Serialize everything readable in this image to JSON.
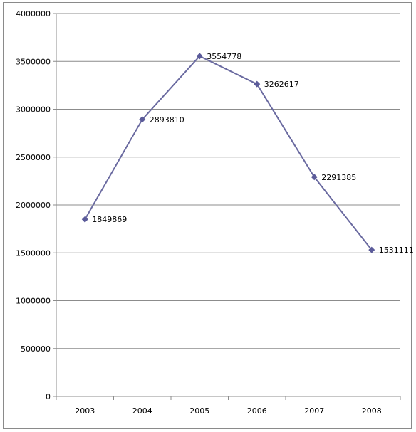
{
  "chart_data": {
    "type": "line",
    "categories": [
      "2003",
      "2004",
      "2005",
      "2006",
      "2007",
      "2008"
    ],
    "series": [
      {
        "values": [
          1849869,
          2893810,
          3554778,
          3262617,
          2291385,
          1531111
        ]
      }
    ],
    "data_labels": [
      "1849869",
      "2893810",
      "3554778",
      "3262617",
      "2291385",
      "1531111"
    ],
    "y_ticks": [
      "0",
      "500000",
      "1000000",
      "1500000",
      "2000000",
      "2500000",
      "3000000",
      "3500000",
      "4000000"
    ],
    "ylim": [
      0,
      4000000
    ],
    "grid": true,
    "legend": "none",
    "colors": {
      "line": "#6A6AA0",
      "marker": "#5B5B9A",
      "grid": "#8C8C8C",
      "axis": "#8C8C8C"
    }
  }
}
